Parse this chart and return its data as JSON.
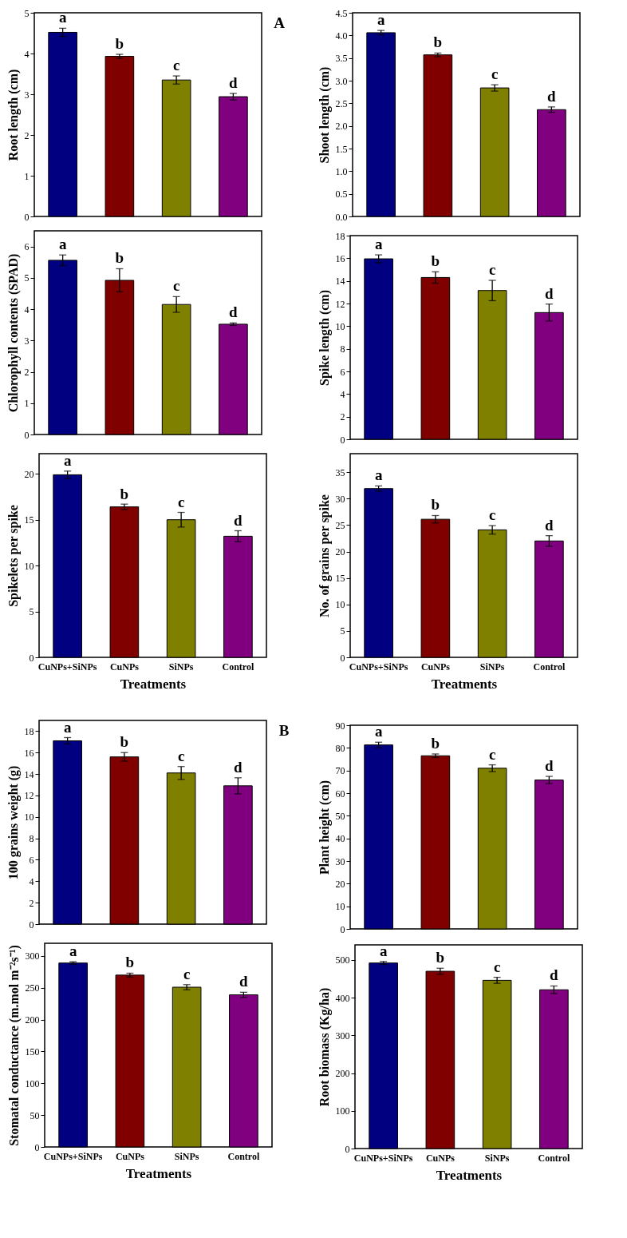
{
  "chart_data": [
    {
      "type": "bar",
      "categories": [
        "CuNPs+SiNPs",
        "CuNPs",
        "SiNPs",
        "Control"
      ],
      "values": [
        4.52,
        3.93,
        3.35,
        2.94
      ],
      "errors": [
        0.1,
        0.05,
        0.1,
        0.08
      ],
      "colors": [
        "#000080",
        "#800000",
        "#808000",
        "#800080"
      ],
      "ylabel": "Root length (cm)",
      "ylim": [
        0,
        5
      ],
      "yticks": [
        0,
        1,
        2,
        3,
        4,
        5
      ],
      "tick_labels": "y",
      "annotations": [
        {
          "text": "a",
          "x": "CuNPs+SiNPs",
          "y": 4.62
        },
        {
          "text": "b",
          "x": "CuNPs",
          "y": 3.98
        },
        {
          "text": "c",
          "x": "SiNPs",
          "y": 3.45
        },
        {
          "text": "d",
          "x": "Control",
          "y": 3.02
        },
        "A"
      ]
    },
    {
      "type": "bar",
      "categories": [
        "CuNPs+SiNPs",
        "CuNPs",
        "SiNPs",
        "Control"
      ],
      "values": [
        4.06,
        3.57,
        2.84,
        2.36
      ],
      "errors": [
        0.05,
        0.04,
        0.07,
        0.06
      ],
      "colors": [
        "#000080",
        "#800000",
        "#808000",
        "#800080"
      ],
      "ylabel": "Shoot length (cm)",
      "ylim": [
        0,
        4.5
      ],
      "yticks": [
        {
          "value": 0,
          "label": "0.0"
        },
        0.5,
        {
          "value": 1,
          "label": "1.0"
        },
        1.5,
        {
          "value": 2,
          "label": "2.0"
        },
        2.5,
        {
          "value": 3,
          "label": "3.0"
        },
        3.5,
        {
          "value": 4,
          "label": "4.0"
        },
        4.5
      ],
      "tick_labels": "y",
      "annotations": [
        {
          "text": "a",
          "x": "CuNPs+SiNPs",
          "y": 4.11
        },
        {
          "text": "b",
          "x": "CuNPs",
          "y": 3.61
        },
        {
          "text": "c",
          "x": "SiNPs",
          "y": 2.91
        },
        {
          "text": "d",
          "x": "Control",
          "y": 2.42
        }
      ]
    },
    {
      "type": "bar",
      "categories": [
        "CuNPs+SiNPs",
        "CuNPs",
        "SiNPs",
        "Control"
      ],
      "values": [
        5.56,
        4.92,
        4.15,
        3.52
      ],
      "errors": [
        0.17,
        0.37,
        0.25,
        0.04
      ],
      "colors": [
        "#000080",
        "#800000",
        "#808000",
        "#800080"
      ],
      "ylabel": "Chlorophyll contents (SPAD)",
      "ylim": [
        0,
        6.5
      ],
      "yticks": [
        0,
        1,
        2,
        3,
        4,
        5,
        6
      ],
      "tick_labels": "y",
      "annotations": [
        {
          "text": "a",
          "x": "CuNPs+SiNPs",
          "y": 5.73
        },
        {
          "text": "b",
          "x": "CuNPs",
          "y": 5.29
        },
        {
          "text": "c",
          "x": "SiNPs",
          "y": 4.4
        },
        {
          "text": "d",
          "x": "Control",
          "y": 3.56
        }
      ]
    },
    {
      "type": "bar",
      "categories": [
        "CuNPs+SiNPs",
        "CuNPs",
        "SiNPs",
        "Control"
      ],
      "values": [
        15.95,
        14.3,
        13.15,
        11.2
      ],
      "errors": [
        0.35,
        0.5,
        0.9,
        0.75
      ],
      "colors": [
        "#000080",
        "#800000",
        "#808000",
        "#800080"
      ],
      "ylabel": "Spike length (cm)",
      "ylim": [
        0,
        18
      ],
      "yticks": [
        0,
        2,
        4,
        6,
        8,
        10,
        12,
        14,
        16,
        18
      ],
      "tick_labels": "y",
      "annotations": [
        {
          "text": "a",
          "x": "CuNPs+SiNPs",
          "y": 16.3
        },
        {
          "text": "b",
          "x": "CuNPs",
          "y": 14.8
        },
        {
          "text": "c",
          "x": "SiNPs",
          "y": 14.05
        },
        {
          "text": "d",
          "x": "Control",
          "y": 11.95
        }
      ]
    },
    {
      "type": "bar",
      "categories": [
        "CuNPs+SiNPs",
        "CuNPs",
        "SiNPs",
        "Control"
      ],
      "values": [
        19.9,
        16.4,
        15.0,
        13.2
      ],
      "errors": [
        0.4,
        0.3,
        0.8,
        0.6
      ],
      "colors": [
        "#000080",
        "#800000",
        "#808000",
        "#800080"
      ],
      "ylabel": "Spikelets per spike",
      "xlabel": "Treatments",
      "ylim": [
        0,
        22.2
      ],
      "yticks": [
        0,
        5,
        10,
        15,
        20
      ],
      "annotations": [
        {
          "text": "a",
          "x": "CuNPs+SiNPs",
          "y": 20.25
        },
        {
          "text": "b",
          "x": "CuNPs",
          "y": 16.65
        },
        {
          "text": "c",
          "x": "SiNPs",
          "y": 15.8
        },
        {
          "text": "d",
          "x": "Control",
          "y": 13.75
        }
      ]
    },
    {
      "type": "bar",
      "categories": [
        "CuNPs+SiNPs",
        "CuNPs",
        "SiNPs",
        "Control"
      ],
      "values": [
        31.9,
        26.1,
        24.1,
        22.0
      ],
      "errors": [
        0.5,
        0.7,
        0.8,
        1.0
      ],
      "colors": [
        "#000080",
        "#800000",
        "#808000",
        "#800080"
      ],
      "ylabel": "No. of grains per spike",
      "xlabel": "Treatments",
      "ylim": [
        0,
        38.5
      ],
      "yticks": [
        0,
        5,
        10,
        15,
        20,
        25,
        30,
        35
      ],
      "annotations": [
        {
          "text": "a",
          "x": "CuNPs+SiNPs",
          "y": 32.4
        },
        {
          "text": "b",
          "x": "CuNPs",
          "y": 26.8
        },
        {
          "text": "c",
          "x": "SiNPs",
          "y": 24.9
        },
        {
          "text": "d",
          "x": "Control",
          "y": 23.0
        }
      ]
    },
    {
      "type": "bar",
      "categories": [
        "CuNPs+SiNPs",
        "CuNPs",
        "SiNPs",
        "Control"
      ],
      "values": [
        17.1,
        15.6,
        14.1,
        12.9
      ],
      "errors": [
        0.3,
        0.4,
        0.6,
        0.75
      ],
      "colors": [
        "#000080",
        "#800000",
        "#808000",
        "#800080"
      ],
      "ylabel": "100 grains weight (g)",
      "ylim": [
        0,
        19
      ],
      "yticks": [
        0,
        2,
        4,
        6,
        8,
        10,
        12,
        14,
        16,
        18
      ],
      "tick_labels": "y",
      "annotations": [
        {
          "text": "a",
          "x": "CuNPs+SiNPs",
          "y": 17.35
        },
        {
          "text": "b",
          "x": "CuNPs",
          "y": 16.0
        },
        {
          "text": "c",
          "x": "SiNPs",
          "y": 14.65
        },
        {
          "text": "d",
          "x": "Control",
          "y": 13.65
        },
        "B"
      ]
    },
    {
      "type": "bar",
      "categories": [
        "CuNPs+SiNPs",
        "CuNPs",
        "SiNPs",
        "Control"
      ],
      "values": [
        81.3,
        76.5,
        71.0,
        65.8
      ],
      "errors": [
        1.2,
        0.8,
        1.5,
        1.6
      ],
      "colors": [
        "#000080",
        "#800000",
        "#808000",
        "#800080"
      ],
      "ylabel": "Plant height (cm)",
      "ylim": [
        0,
        90
      ],
      "yticks": [
        0,
        10,
        20,
        30,
        40,
        50,
        60,
        70,
        80,
        90
      ],
      "tick_labels": "y",
      "annotations": [
        {
          "text": "a",
          "x": "CuNPs+SiNPs",
          "y": 82.5
        },
        {
          "text": "b",
          "x": "CuNPs",
          "y": 77.3
        },
        {
          "text": "c",
          "x": "SiNPs",
          "y": 72.5
        },
        {
          "text": "d",
          "x": "Control",
          "y": 67.4
        }
      ]
    },
    {
      "type": "bar",
      "categories": [
        "CuNPs+SiNPs",
        "CuNPs",
        "SiNPs",
        "Control"
      ],
      "values": [
        289,
        270,
        251,
        239
      ],
      "errors": [
        2,
        3,
        4,
        4
      ],
      "colors": [
        "#000080",
        "#800000",
        "#808000",
        "#800080"
      ],
      "ylabel": "Stomatal conductance (m.mol m⁻²s⁻¹)",
      "xlabel": "Treatments",
      "ylim": [
        0,
        320
      ],
      "yticks": [
        0,
        50,
        100,
        150,
        200,
        250,
        300
      ],
      "annotations": [
        {
          "text": "a",
          "x": "CuNPs+SiNPs",
          "y": 291
        },
        {
          "text": "b",
          "x": "CuNPs",
          "y": 273
        },
        {
          "text": "c",
          "x": "SiNPs",
          "y": 255
        },
        {
          "text": "d",
          "x": "Control",
          "y": 243
        }
      ]
    },
    {
      "type": "bar",
      "categories": [
        "CuNPs+SiNPs",
        "CuNPs",
        "SiNPs",
        "Control"
      ],
      "values": [
        492,
        470,
        446,
        421
      ],
      "errors": [
        4,
        8,
        8,
        10
      ],
      "colors": [
        "#000080",
        "#800000",
        "#808000",
        "#800080"
      ],
      "ylabel": "Root biomass (Kg/ha)",
      "xlabel": "Treatments",
      "ylim": [
        0,
        540
      ],
      "yticks": [
        0,
        100,
        200,
        300,
        400,
        500
      ],
      "annotations": [
        {
          "text": "a",
          "x": "CuNPs+SiNPs",
          "y": 496
        },
        {
          "text": "b",
          "x": "CuNPs",
          "y": 478
        },
        {
          "text": "c",
          "x": "SiNPs",
          "y": 454
        },
        {
          "text": "d",
          "x": "Control",
          "y": 431
        }
      ]
    }
  ]
}
